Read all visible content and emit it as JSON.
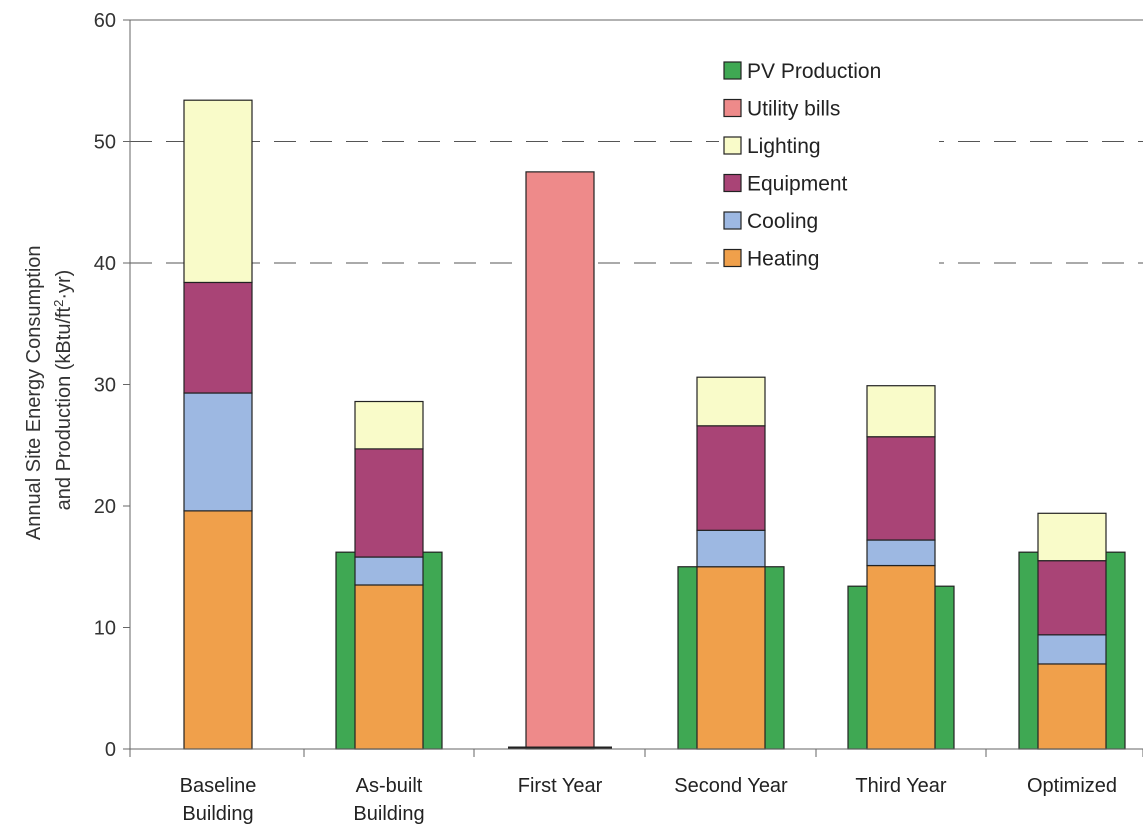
{
  "chart_data": {
    "type": "bar",
    "title": "",
    "ylabel_line1": "Annual Site Energy Consumption",
    "ylabel_line2_pre": "and Production (kBtu/ft",
    "ylabel_line2_sup": "2",
    "ylabel_line2_post": "·yr)",
    "ylim": [
      0,
      60
    ],
    "yticks": [
      "0",
      "10",
      "20",
      "30",
      "40",
      "50",
      "60"
    ],
    "grid": "dashed at 40 and 50",
    "legend_position": "top-right",
    "categories": [
      [
        "Baseline",
        "Building"
      ],
      [
        "As-built",
        "Building"
      ],
      [
        "First Year"
      ],
      [
        "Second Year"
      ],
      [
        "Third Year"
      ],
      [
        "Optimized"
      ]
    ],
    "pv_production": [
      null,
      16.2,
      null,
      15.0,
      13.4,
      16.2
    ],
    "utility_bills": [
      null,
      null,
      47.5,
      null,
      null,
      null
    ],
    "stacked_series": [
      {
        "name": "Heating",
        "color": "#f0a04b",
        "values": [
          19.6,
          13.5,
          null,
          15.0,
          15.1,
          7.0
        ]
      },
      {
        "name": "Cooling",
        "color": "#9db8e2",
        "values": [
          9.7,
          2.3,
          null,
          3.0,
          2.1,
          2.4
        ]
      },
      {
        "name": "Equipment",
        "color": "#a94476",
        "values": [
          9.1,
          8.9,
          null,
          8.6,
          8.5,
          6.1
        ]
      },
      {
        "name": "Lighting",
        "color": "#f9fbc9",
        "values": [
          15.0,
          3.9,
          null,
          4.0,
          4.2,
          3.9
        ]
      }
    ],
    "legend": [
      {
        "name": "PV Production",
        "color": "#3fa853"
      },
      {
        "name": "Utility bills",
        "color": "#ee8a8a"
      },
      {
        "name": "Lighting",
        "color": "#f9fbc9"
      },
      {
        "name": "Equipment",
        "color": "#a94476"
      },
      {
        "name": "Cooling",
        "color": "#9db8e2"
      },
      {
        "name": "Heating",
        "color": "#f0a04b"
      }
    ]
  }
}
